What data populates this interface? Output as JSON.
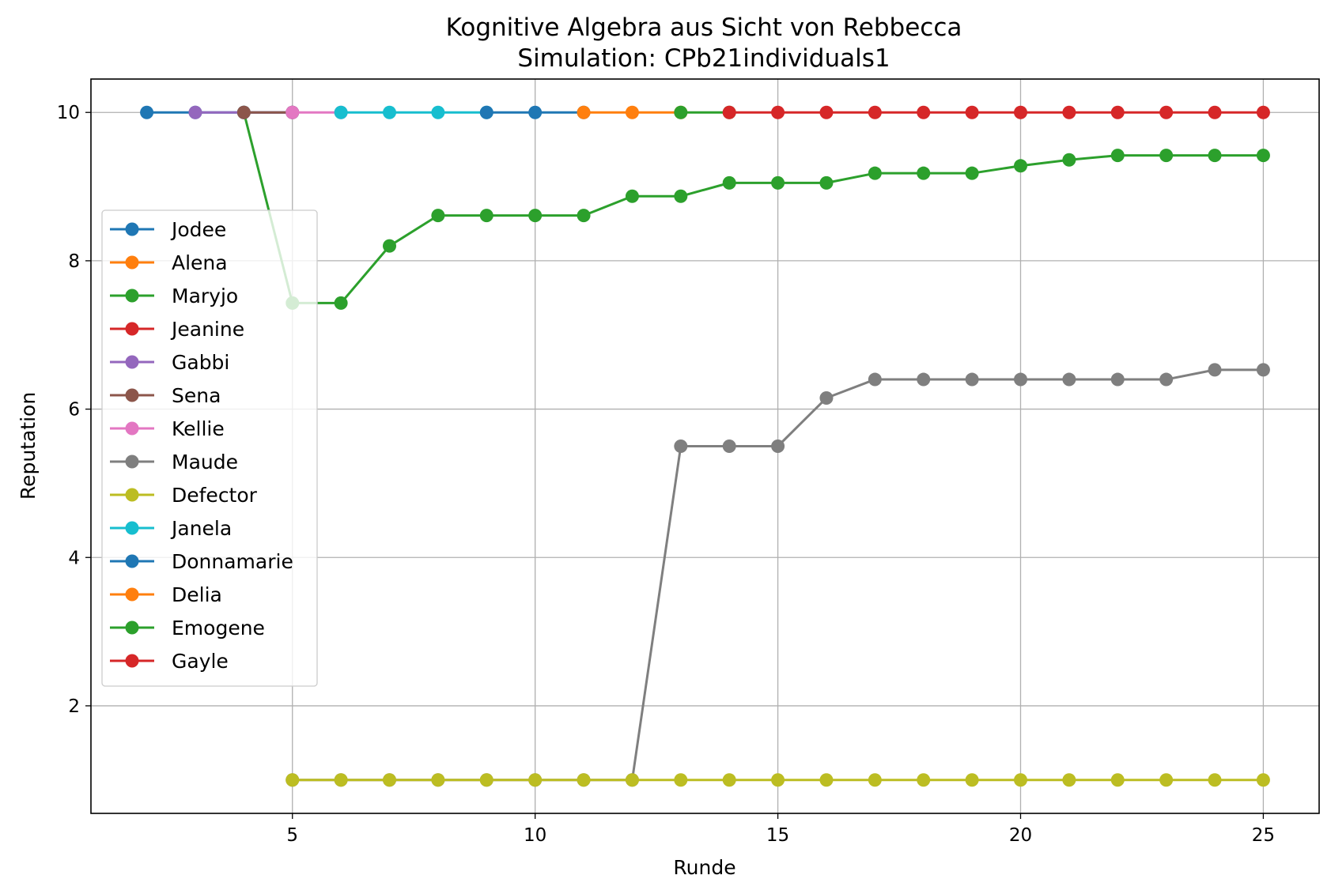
{
  "chart_data": {
    "type": "line",
    "title": "Kognitive Algebra aus Sicht von Rebbecca",
    "subtitle": "Simulation: CPb21individuals1",
    "xlabel": "Runde",
    "ylabel": "Reputation",
    "xlim": [
      0.85,
      26.15
    ],
    "ylim": [
      0.55,
      10.45
    ],
    "xticks": [
      5,
      10,
      15,
      20,
      25
    ],
    "yticks": [
      2,
      4,
      6,
      8,
      10
    ],
    "grid": true,
    "legend_position": "center-left",
    "series": [
      {
        "name": "Jodee",
        "color": "#1f77b4",
        "x": [
          2,
          3,
          4,
          5
        ],
        "y": [
          10,
          10,
          10,
          10
        ]
      },
      {
        "name": "Alena",
        "color": "#ff7f0e",
        "x": [],
        "y": []
      },
      {
        "name": "Maryjo",
        "color": "#2ca02c",
        "x": [
          4,
          5,
          6,
          7,
          8,
          9,
          10,
          11,
          12,
          13,
          14,
          15,
          16,
          17,
          18,
          19,
          20,
          21,
          22,
          23,
          24,
          25
        ],
        "y": [
          10,
          7.43,
          7.43,
          8.2,
          8.61,
          8.61,
          8.61,
          8.61,
          8.87,
          8.87,
          9.05,
          9.05,
          9.05,
          9.18,
          9.18,
          9.18,
          9.28,
          9.36,
          9.42,
          9.42,
          9.42,
          9.42
        ]
      },
      {
        "name": "Jeanine",
        "color": "#d62728",
        "x": [],
        "y": []
      },
      {
        "name": "Gabbi",
        "color": "#9467bd",
        "x": [
          3,
          4,
          5
        ],
        "y": [
          10,
          10,
          10
        ]
      },
      {
        "name": "Sena",
        "color": "#8c564b",
        "x": [
          4,
          5
        ],
        "y": [
          10,
          10
        ]
      },
      {
        "name": "Kellie",
        "color": "#e377c2",
        "x": [
          5,
          6
        ],
        "y": [
          10,
          10
        ]
      },
      {
        "name": "Maude",
        "color": "#7f7f7f",
        "x": [
          5,
          6,
          7,
          8,
          9,
          10,
          11,
          12,
          13,
          14,
          15,
          16,
          17,
          18,
          19,
          20,
          21,
          22,
          23,
          24,
          25
        ],
        "y": [
          1,
          1,
          1,
          1,
          1,
          1,
          1,
          1,
          5.5,
          5.5,
          5.5,
          6.15,
          6.4,
          6.4,
          6.4,
          6.4,
          6.4,
          6.4,
          6.4,
          6.53,
          6.53
        ]
      },
      {
        "name": "Defector",
        "color": "#bcbd22",
        "x": [
          5,
          6,
          7,
          8,
          9,
          10,
          11,
          12,
          13,
          14,
          15,
          16,
          17,
          18,
          19,
          20,
          21,
          22,
          23,
          24,
          25
        ],
        "y": [
          1,
          1,
          1,
          1,
          1,
          1,
          1,
          1,
          1,
          1,
          1,
          1,
          1,
          1,
          1,
          1,
          1,
          1,
          1,
          1,
          1
        ]
      },
      {
        "name": "Janela",
        "color": "#17becf",
        "x": [
          6,
          7,
          8,
          9
        ],
        "y": [
          10,
          10,
          10,
          10
        ]
      },
      {
        "name": "Donnamarie",
        "color": "#1f77b4",
        "x": [
          9,
          10,
          11
        ],
        "y": [
          10,
          10,
          10
        ]
      },
      {
        "name": "Delia",
        "color": "#ff7f0e",
        "x": [
          11,
          12,
          13
        ],
        "y": [
          10,
          10,
          10
        ]
      },
      {
        "name": "Emogene",
        "color": "#2ca02c",
        "x": [
          13,
          14
        ],
        "y": [
          10,
          10
        ]
      },
      {
        "name": "Gayle",
        "color": "#d62728",
        "x": [
          14,
          15,
          16,
          17,
          18,
          19,
          20,
          21,
          22,
          23,
          24,
          25
        ],
        "y": [
          10,
          10,
          10,
          10,
          10,
          10,
          10,
          10,
          10,
          10,
          10,
          10
        ]
      }
    ]
  }
}
